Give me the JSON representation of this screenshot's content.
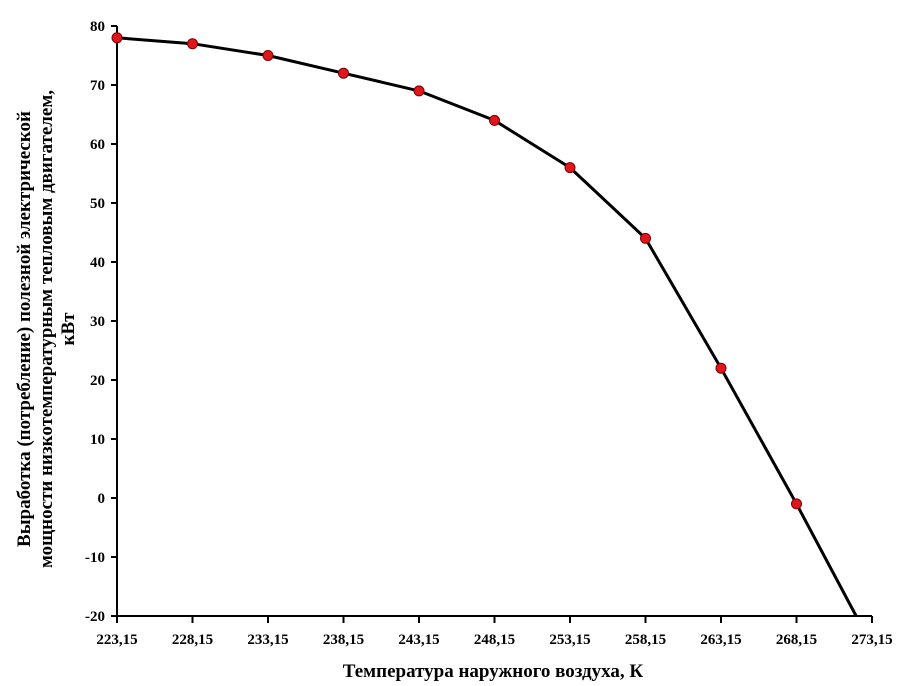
{
  "chart_data": {
    "type": "line",
    "title": "",
    "xlabel": "Температура наружного воздуха, К",
    "ylabel_lines": [
      "Выработка (потребление) полезной электрической",
      "мощности низкотемпературным тепловым двигателем,",
      "кВт"
    ],
    "x_ticks": [
      223.15,
      228.15,
      233.15,
      238.15,
      243.15,
      248.15,
      253.15,
      258.15,
      263.15,
      268.15,
      273.15
    ],
    "x_tick_labels": [
      "223,15",
      "228,15",
      "233,15",
      "238,15",
      "243,15",
      "248,15",
      "253,15",
      "258,15",
      "263,15",
      "268,15",
      "273,15"
    ],
    "y_ticks": [
      -20,
      -10,
      0,
      10,
      20,
      30,
      40,
      50,
      60,
      70,
      80
    ],
    "y_tick_labels": [
      "-20",
      "-10",
      "0",
      "10",
      "20",
      "30",
      "40",
      "50",
      "60",
      "70",
      "80"
    ],
    "xlim": [
      223.15,
      273.15
    ],
    "ylim": [
      -20,
      80
    ],
    "grid": false,
    "series": [
      {
        "x": [
          223.15,
          228.15,
          233.15,
          238.15,
          243.15,
          248.15,
          253.15,
          258.15,
          263.15,
          268.15,
          272.1
        ],
        "y": [
          78,
          77,
          75,
          72,
          69,
          64,
          56,
          44,
          22,
          -1,
          -20
        ],
        "markers": [
          true,
          true,
          true,
          true,
          true,
          true,
          true,
          true,
          true,
          true,
          false
        ],
        "line_color": "#000000",
        "marker_color": "#e0161d"
      }
    ]
  }
}
